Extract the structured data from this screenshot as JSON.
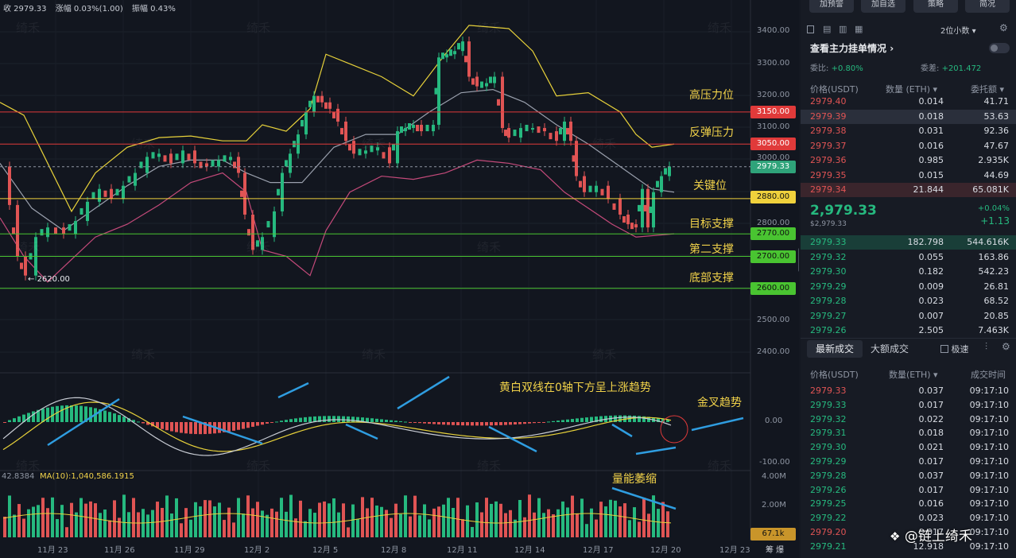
{
  "topbar": {
    "close": "收 2979.33",
    "change": "涨幅 0.03%(1.00)",
    "amplitude": "振幅 0.43%"
  },
  "annotations": {
    "high_pressure": "高压力位",
    "rebound_pressure": "反弹压力",
    "key_level": "关键位",
    "target_support": "目标支撑",
    "second_support": "第二支撑",
    "bottom_support": "底部支撑",
    "macd_note": "黄白双线在0轴下方呈上涨趋势",
    "golden_cross": "金叉趋势",
    "volume_note": "量能萎缩",
    "low_marker": "2620.00"
  },
  "y_axis": [
    "3400.00",
    "3300.00",
    "3200.00",
    "3100.00",
    "3000.00",
    "2800.00",
    "2500.00",
    "2400.00"
  ],
  "price_tags": {
    "p3150": "3150.00",
    "p3050": "3050.00",
    "current": "2979.33",
    "p2880": "2880.00",
    "p2770": "2770.00",
    "p2700": "2700.00",
    "p2600": "2600.00"
  },
  "macd_axis": {
    "zero": "0.00",
    "neg": "-100.00",
    "left_value": "42.8384"
  },
  "volume": {
    "ma_label": "MA(10):1,040,586.1915",
    "axis_top": "4.00M",
    "axis_mid": "2.00M",
    "tag": "67.1k"
  },
  "x_axis": [
    "11月 23",
    "11月 26",
    "11月 29",
    "12月 2",
    "12月 5",
    "12月 8",
    "12月 11",
    "12月 14",
    "12月 17",
    "12月 20",
    "12月 23"
  ],
  "x_axis_right": "筹 爆",
  "watermark": "绮禾",
  "logo": "@链上绮禾",
  "panel": {
    "buttons": [
      "加预警",
      "加自选",
      "策略",
      "简况"
    ],
    "decimals": "2位小数",
    "section_title": "查看主力挂单情况",
    "ratio_label": "委比:",
    "ratio_value": "+0.80%",
    "diff_label": "委差:",
    "diff_value": "+201.472",
    "book_headers": [
      "价格(USDT)",
      "数量 (ETH)",
      "委托额"
    ],
    "asks": [
      {
        "price": "2979.40",
        "qty": "0.014",
        "amt": "41.71"
      },
      {
        "price": "2979.39",
        "qty": "0.018",
        "amt": "53.63"
      },
      {
        "price": "2979.38",
        "qty": "0.031",
        "amt": "92.36"
      },
      {
        "price": "2979.37",
        "qty": "0.016",
        "amt": "47.67"
      },
      {
        "price": "2979.36",
        "qty": "0.985",
        "amt": "2.935K"
      },
      {
        "price": "2979.35",
        "qty": "0.015",
        "amt": "44.69"
      },
      {
        "price": "2979.34",
        "qty": "21.844",
        "amt": "65.081K"
      }
    ],
    "last_price": "2,979.33",
    "last_price_sub": "$2,979.33",
    "last_change_pct": "+0.04%",
    "last_change_abs": "+1.13",
    "bids": [
      {
        "price": "2979.33",
        "qty": "182.798",
        "amt": "544.616K"
      },
      {
        "price": "2979.32",
        "qty": "0.055",
        "amt": "163.86"
      },
      {
        "price": "2979.30",
        "qty": "0.182",
        "amt": "542.23"
      },
      {
        "price": "2979.29",
        "qty": "0.009",
        "amt": "26.81"
      },
      {
        "price": "2979.28",
        "qty": "0.023",
        "amt": "68.52"
      },
      {
        "price": "2979.27",
        "qty": "0.007",
        "amt": "20.85"
      },
      {
        "price": "2979.26",
        "qty": "2.505",
        "amt": "7.463K"
      }
    ],
    "trade_tabs": [
      "最新成交",
      "大额成交"
    ],
    "speed_label": "极速",
    "trade_headers": [
      "价格(USDT)",
      "数量(ETH)",
      "成交时间"
    ],
    "trades": [
      {
        "price": "2979.33",
        "qty": "0.037",
        "time": "09:17:10",
        "side": "sell"
      },
      {
        "price": "2979.33",
        "qty": "0.017",
        "time": "09:17:10",
        "side": "buy"
      },
      {
        "price": "2979.32",
        "qty": "0.022",
        "time": "09:17:10",
        "side": "buy"
      },
      {
        "price": "2979.31",
        "qty": "0.018",
        "time": "09:17:10",
        "side": "buy"
      },
      {
        "price": "2979.30",
        "qty": "0.021",
        "time": "09:17:10",
        "side": "buy"
      },
      {
        "price": "2979.29",
        "qty": "0.017",
        "time": "09:17:10",
        "side": "buy"
      },
      {
        "price": "2979.28",
        "qty": "0.037",
        "time": "09:17:10",
        "side": "buy"
      },
      {
        "price": "2979.26",
        "qty": "0.017",
        "time": "09:17:10",
        "side": "buy"
      },
      {
        "price": "2979.25",
        "qty": "0.016",
        "time": "09:17:10",
        "side": "buy"
      },
      {
        "price": "2979.22",
        "qty": "0.023",
        "time": "09:17:10",
        "side": "buy"
      },
      {
        "price": "2979.20",
        "qty": "0.017",
        "time": "09:17:10",
        "side": "sell"
      },
      {
        "price": "2979.21",
        "qty": "12.918",
        "time": "09:17:10",
        "side": "buy"
      }
    ]
  },
  "colors": {
    "up": "#26b97f",
    "down": "#e05454",
    "accent": "#f2d34a",
    "bg": "#12161f"
  }
}
